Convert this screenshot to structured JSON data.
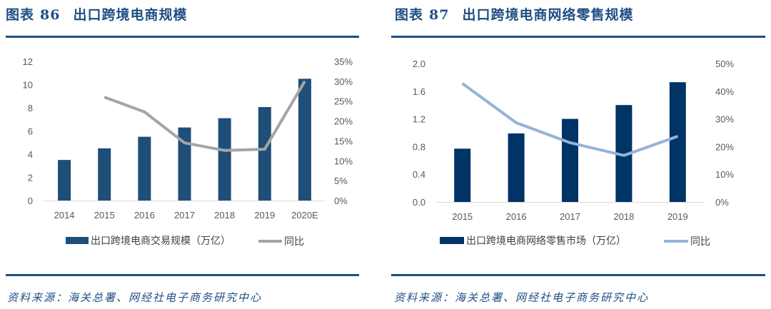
{
  "panels": [
    {
      "fig_label": "图表",
      "fig_num": "86",
      "title": "出口跨境电商规模",
      "source": "资料来源：海关总署、网经社电子商务研究中心"
    },
    {
      "fig_label": "图表",
      "fig_num": "87",
      "title": "出口跨境电商网络零售规模",
      "source": "资料来源：海关总署、网经社电子商务研究中心"
    }
  ],
  "chart_data": [
    {
      "type": "bar+line",
      "categories": [
        "2014",
        "2015",
        "2016",
        "2017",
        "2018",
        "2019",
        "2020E"
      ],
      "series": [
        {
          "name": "出口跨境电商交易规模（万亿）",
          "type": "bar",
          "axis": "left",
          "color": "#1f4e79",
          "values": [
            3.5,
            4.5,
            5.5,
            6.3,
            7.1,
            8.06,
            10.5
          ]
        },
        {
          "name": "同比",
          "type": "line",
          "axis": "right",
          "color": "#a5a5a5",
          "values": [
            null,
            26.0,
            22.3,
            14.5,
            12.6,
            12.9,
            30.0
          ]
        }
      ],
      "left_axis": {
        "ylim": [
          0,
          12
        ],
        "ticks": [
          "0",
          "2",
          "4",
          "6",
          "8",
          "10",
          "12"
        ]
      },
      "right_axis": {
        "ylim": [
          0,
          35
        ],
        "ticks": [
          "0%",
          "5%",
          "10%",
          "15%",
          "20%",
          "25%",
          "30%",
          "35%"
        ]
      },
      "legend": "bottom",
      "grid": false
    },
    {
      "type": "bar+line",
      "categories": [
        "2015",
        "2016",
        "2017",
        "2018",
        "2019"
      ],
      "series": [
        {
          "name": "出口跨境电商网络零售市场（万亿）",
          "type": "bar",
          "axis": "left",
          "color": "#003366",
          "values": [
            0.77,
            0.99,
            1.2,
            1.4,
            1.73
          ]
        },
        {
          "name": "同比",
          "type": "line",
          "axis": "right",
          "color": "#95b3d7",
          "values": [
            42.8,
            28.6,
            21.4,
            16.8,
            23.7
          ]
        }
      ],
      "left_axis": {
        "ylim": [
          0,
          2.0
        ],
        "ticks": [
          "0.0",
          "0.4",
          "0.8",
          "1.2",
          "1.6",
          "2.0"
        ]
      },
      "right_axis": {
        "ylim": [
          0,
          50
        ],
        "ticks": [
          "0%",
          "10%",
          "20%",
          "30%",
          "40%",
          "50%"
        ]
      },
      "legend": "bottom",
      "grid": false
    }
  ]
}
